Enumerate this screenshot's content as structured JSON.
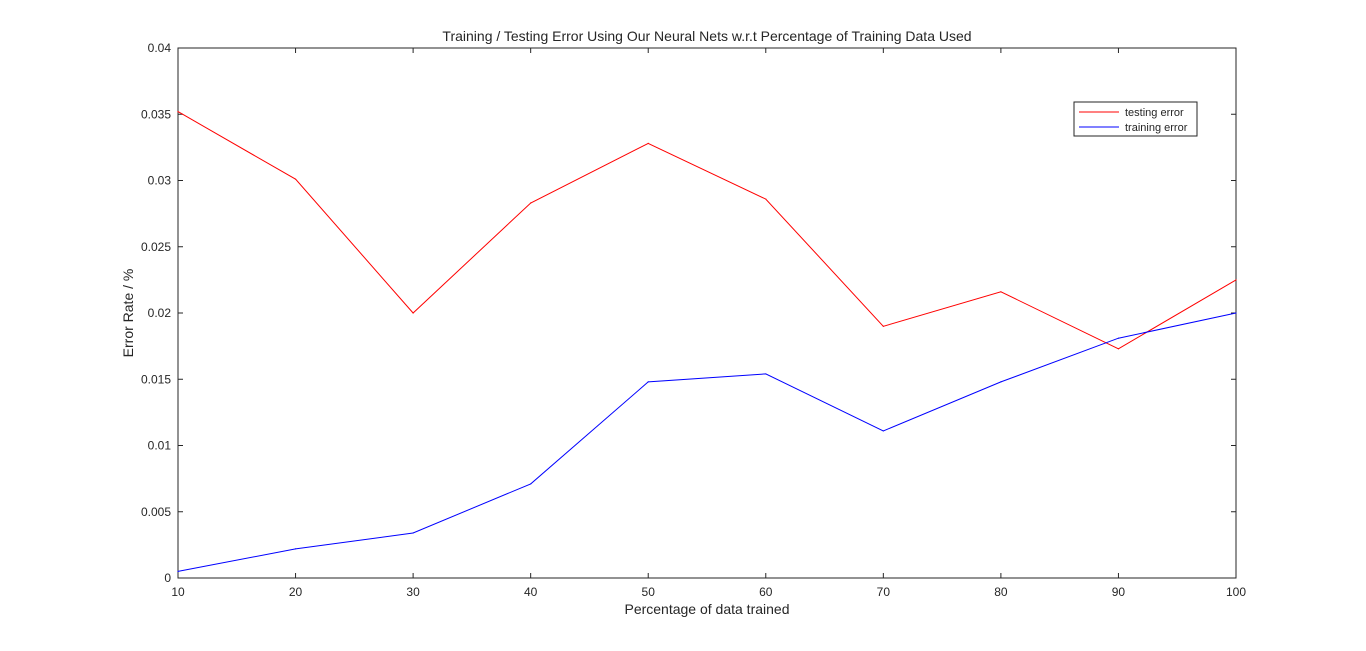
{
  "chart_data": {
    "type": "line",
    "title": "Training / Testing Error Using Our Neural Nets w.r.t Percentage of Training Data Used",
    "xlabel": "Percentage of data trained",
    "ylabel": "Error Rate / %",
    "xlim": [
      10,
      100
    ],
    "ylim": [
      0,
      0.04
    ],
    "x_ticks": [
      "10",
      "20",
      "30",
      "40",
      "50",
      "60",
      "70",
      "80",
      "90",
      "100"
    ],
    "y_ticks": [
      "0",
      "0.005",
      "0.01",
      "0.015",
      "0.02",
      "0.025",
      "0.03",
      "0.035",
      "0.04"
    ],
    "grid": false,
    "legend_position": "top-right",
    "x": [
      10,
      20,
      30,
      40,
      50,
      60,
      70,
      80,
      90,
      100
    ],
    "series": [
      {
        "name": "testing error",
        "color": "#ff0000",
        "values": [
          0.0352,
          0.0301,
          0.02,
          0.0283,
          0.0328,
          0.0286,
          0.019,
          0.0216,
          0.0173,
          0.0225
        ]
      },
      {
        "name": "training error",
        "color": "#0000ff",
        "values": [
          0.0005,
          0.0022,
          0.0034,
          0.0071,
          0.0148,
          0.0154,
          0.0111,
          0.0148,
          0.0181,
          0.02
        ]
      }
    ]
  }
}
